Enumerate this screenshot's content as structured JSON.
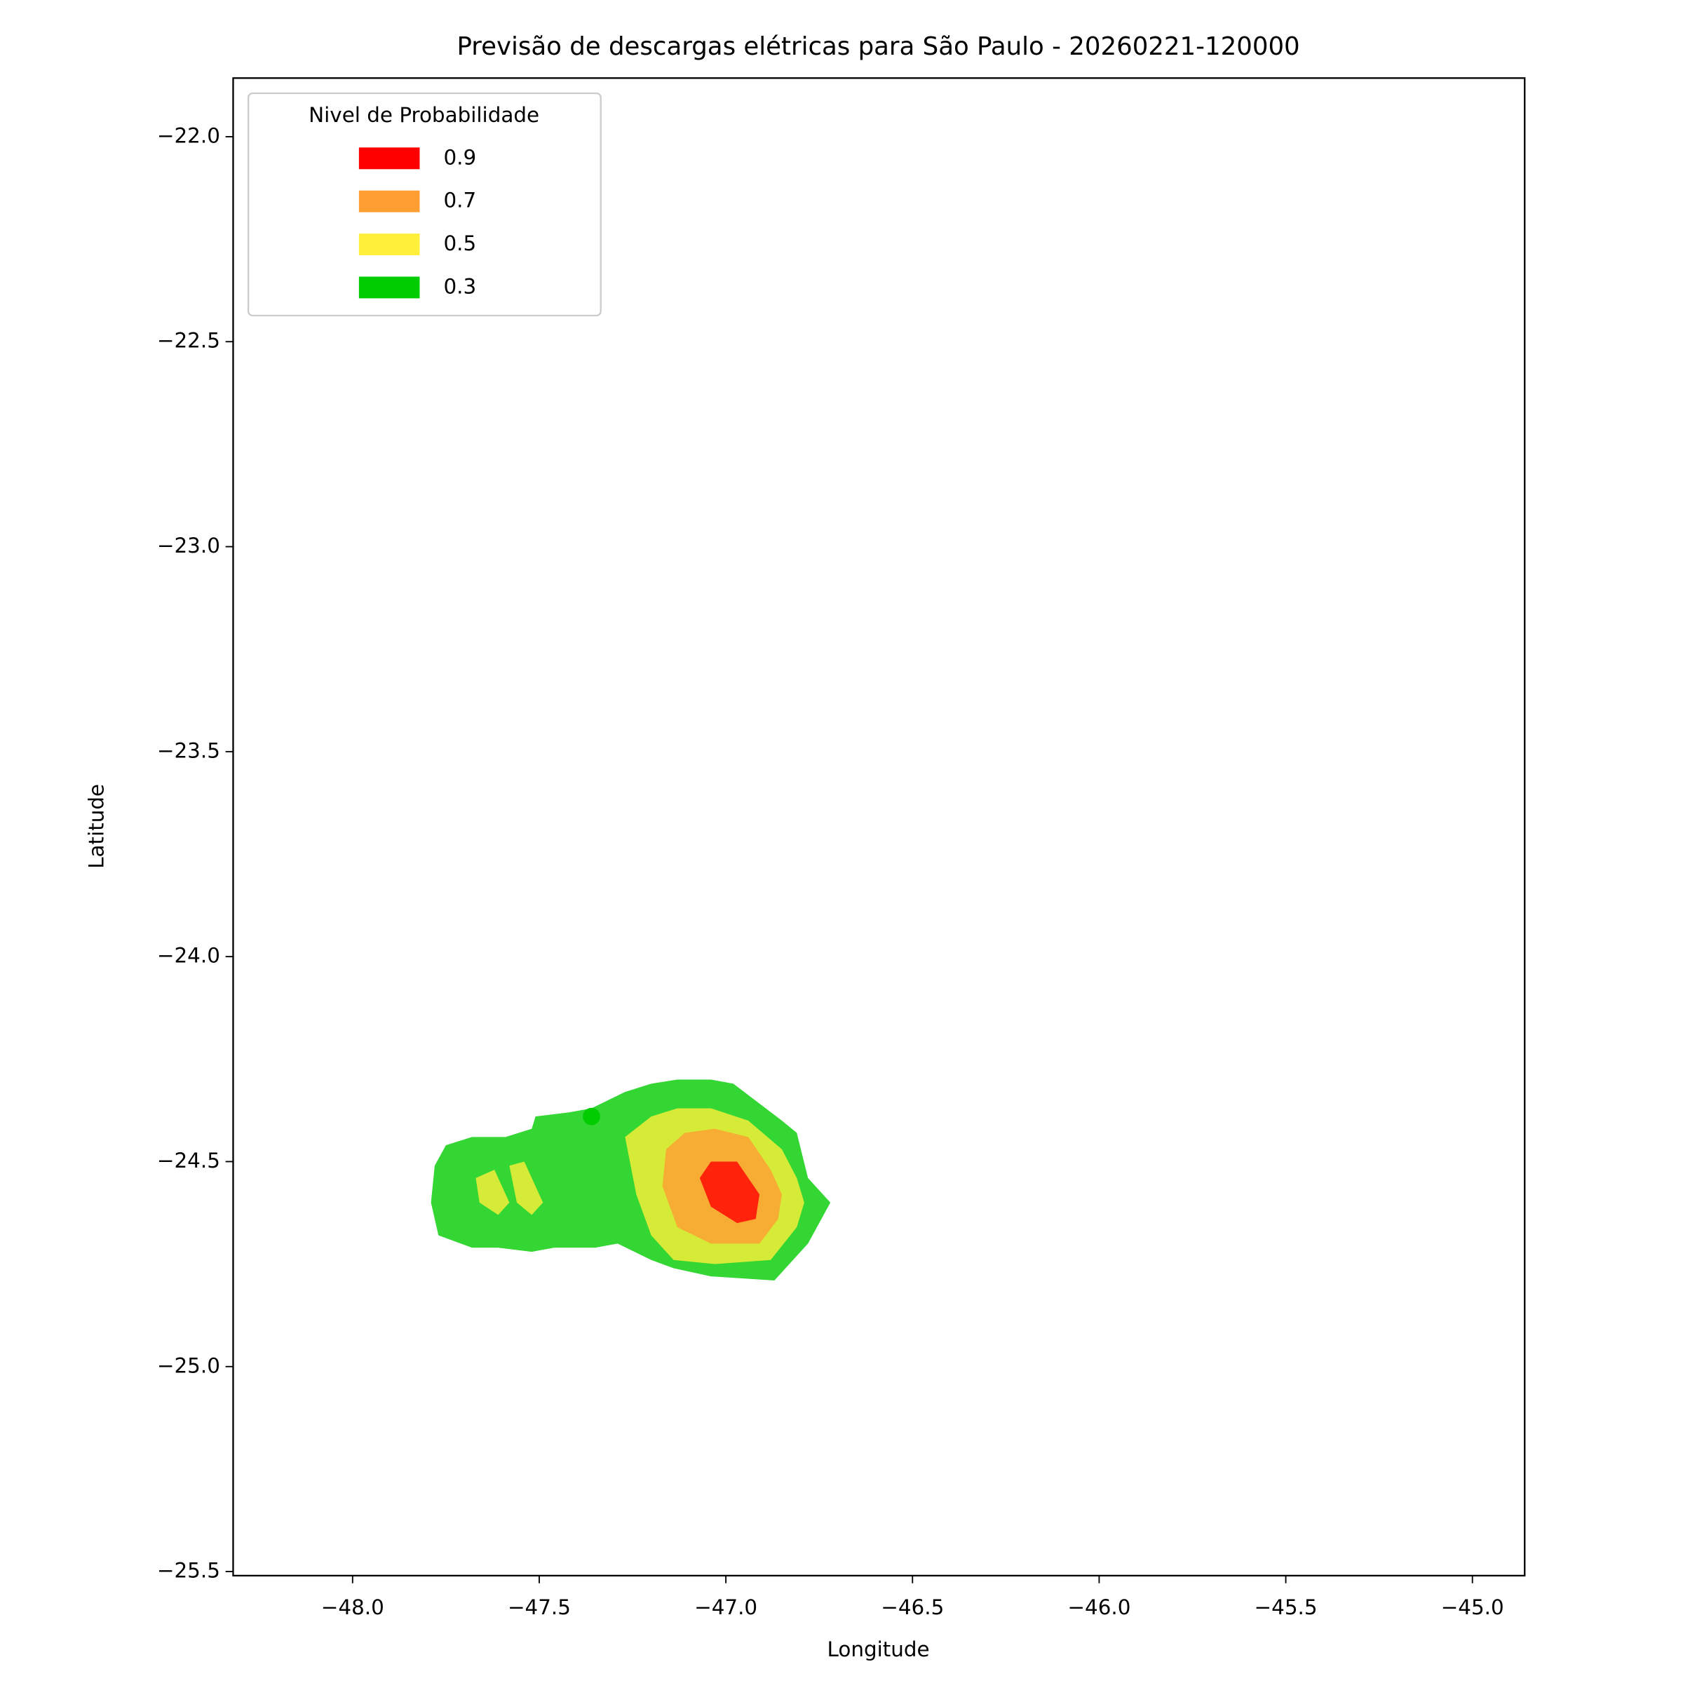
{
  "chart_data": {
    "type": "contour",
    "title": "Previsão de descargas elétricas para São Paulo - 20260221-120000",
    "x_label": "Longitude",
    "y_label": "Latitude",
    "xlim": [
      -48.32,
      -44.86
    ],
    "ylim": [
      -25.51,
      -21.857
    ],
    "xticks": [
      {
        "value": -48.0,
        "label": "−48.0"
      },
      {
        "value": -47.5,
        "label": "−47.5"
      },
      {
        "value": -47.0,
        "label": "−47.0"
      },
      {
        "value": -46.5,
        "label": "−46.5"
      },
      {
        "value": -46.0,
        "label": "−46.0"
      },
      {
        "value": -45.5,
        "label": "−45.5"
      },
      {
        "value": -45.0,
        "label": "−45.0"
      }
    ],
    "yticks": [
      {
        "value": -22.0,
        "label": "−22.0"
      },
      {
        "value": -22.5,
        "label": "−22.5"
      },
      {
        "value": -23.0,
        "label": "−23.0"
      },
      {
        "value": -23.5,
        "label": "−23.5"
      },
      {
        "value": -24.0,
        "label": "−24.0"
      },
      {
        "value": -24.5,
        "label": "−24.5"
      },
      {
        "value": -25.0,
        "label": "−25.0"
      },
      {
        "value": -25.5,
        "label": "−25.5"
      }
    ],
    "legend_title": "Nivel de Probabilidade",
    "legend_position": "upper left",
    "alpha": 0.8,
    "series": [
      {
        "name": "0.9",
        "color": "#ff0000",
        "polygons": [
          {
            "lon": [
              -47.07,
              -47.04,
              -46.97,
              -46.91,
              -46.92,
              -46.97,
              -47.04
            ],
            "lat": [
              -24.54,
              -24.5,
              -24.5,
              -24.58,
              -24.64,
              -24.65,
              -24.61
            ]
          }
        ]
      },
      {
        "name": "0.7",
        "color": "#ff9e33",
        "polygons": [
          {
            "lon": [
              -47.16,
              -47.11,
              -47.03,
              -46.94,
              -46.88,
              -46.85,
              -46.86,
              -46.91,
              -47.04,
              -47.13,
              -47.17
            ],
            "lat": [
              -24.47,
              -24.43,
              -24.42,
              -24.44,
              -24.52,
              -24.58,
              -24.64,
              -24.7,
              -24.7,
              -24.66,
              -24.56
            ]
          }
        ]
      },
      {
        "name": "0.5",
        "color": "#ffef3a",
        "polygons": [
          {
            "lon": [
              -47.27,
              -47.2,
              -47.13,
              -47.04,
              -46.94,
              -46.85,
              -46.81,
              -46.79,
              -46.81,
              -46.88,
              -47.03,
              -47.14,
              -47.2,
              -47.24
            ],
            "lat": [
              -24.44,
              -24.39,
              -24.37,
              -24.37,
              -24.4,
              -24.47,
              -24.54,
              -24.6,
              -24.66,
              -24.74,
              -24.75,
              -24.74,
              -24.68,
              -24.58
            ]
          },
          {
            "lon": [
              -47.67,
              -47.62,
              -47.58,
              -47.61,
              -47.66
            ],
            "lat": [
              -24.54,
              -24.52,
              -24.6,
              -24.63,
              -24.6
            ]
          },
          {
            "lon": [
              -47.58,
              -47.54,
              -47.49,
              -47.52,
              -47.56
            ],
            "lat": [
              -24.51,
              -24.5,
              -24.6,
              -24.63,
              -24.6
            ]
          }
        ]
      },
      {
        "name": "0.3",
        "color": "#00cc00",
        "polygons": [
          {
            "lon": [
              -47.78,
              -47.75,
              -47.68,
              -47.59,
              -47.52,
              -47.51,
              -47.42,
              -47.36,
              -47.27,
              -47.2,
              -47.13,
              -47.04,
              -46.98,
              -46.85,
              -46.81,
              -46.78,
              -46.72,
              -46.78,
              -46.87,
              -47.04,
              -47.14,
              -47.2,
              -47.29,
              -47.35,
              -47.46,
              -47.52,
              -47.61,
              -47.68,
              -47.77,
              -47.79
            ],
            "lat": [
              -24.51,
              -24.46,
              -24.44,
              -24.44,
              -24.42,
              -24.39,
              -24.38,
              -24.37,
              -24.33,
              -24.31,
              -24.3,
              -24.3,
              -24.31,
              -24.4,
              -24.43,
              -24.54,
              -24.6,
              -24.7,
              -24.79,
              -24.78,
              -24.76,
              -24.74,
              -24.7,
              -24.71,
              -24.71,
              -24.72,
              -24.71,
              -24.71,
              -24.68,
              -24.6
            ]
          }
        ]
      }
    ],
    "points": {
      "lon": [
        -47.36
      ],
      "lat": [
        -24.39
      ],
      "color": "#00cc00"
    }
  }
}
